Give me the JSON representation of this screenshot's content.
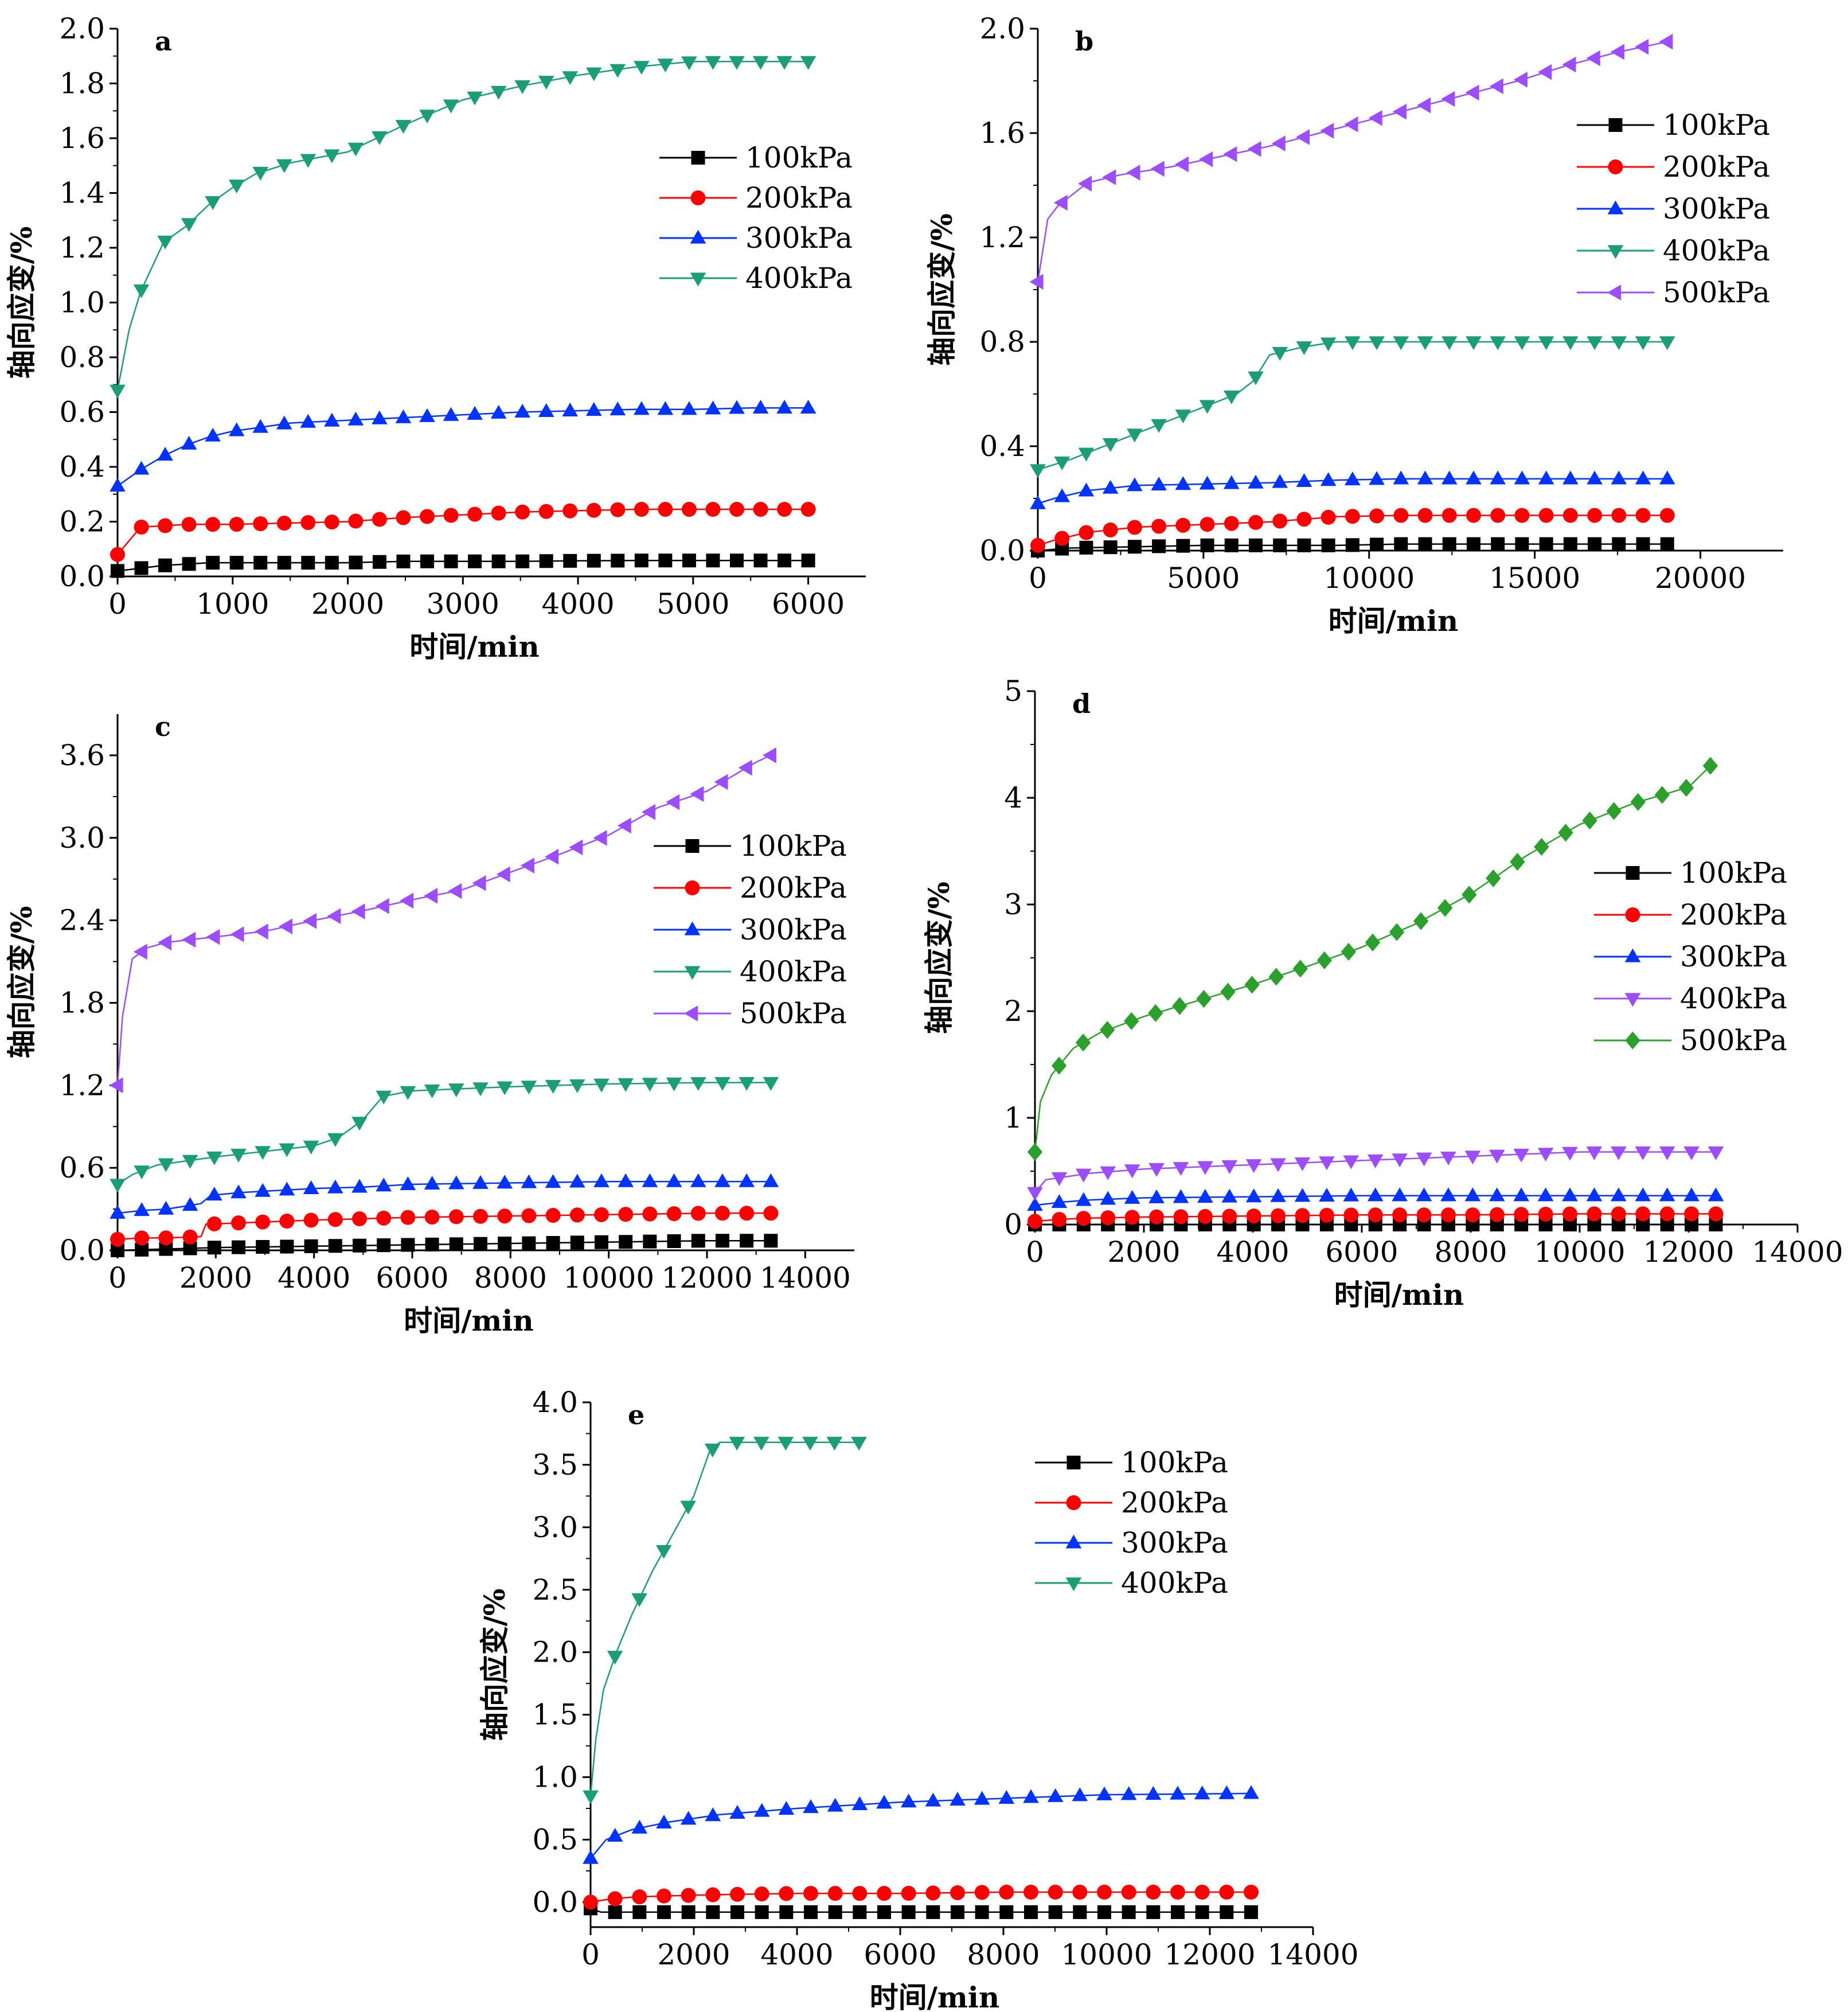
{
  "chart_data": [
    {
      "type": "line",
      "panel": "a",
      "xlabel": "时间/min",
      "ylabel": "轴向应变/%",
      "xlim": [
        0,
        6500
      ],
      "ylim": [
        0,
        2.0
      ],
      "xticks": [
        "0",
        "1000",
        "2000",
        "3000",
        "4000",
        "5000",
        "6000"
      ],
      "yticks": [
        "0.0",
        "0.2",
        "0.4",
        "0.6",
        "0.8",
        "1.0",
        "1.2",
        "1.4",
        "1.6",
        "1.8",
        "2.0"
      ],
      "legend_position": "right",
      "series": [
        {
          "name": "100kPa",
          "color": "#000000",
          "marker": "square",
          "x": [
            0,
            200,
            400,
            600,
            800,
            1000,
            1500,
            2000,
            2500,
            3000,
            3500,
            4000,
            4500,
            5000,
            5500,
            6000
          ],
          "y": [
            0.02,
            0.03,
            0.04,
            0.045,
            0.05,
            0.05,
            0.05,
            0.05,
            0.055,
            0.055,
            0.055,
            0.057,
            0.058,
            0.058,
            0.058,
            0.058
          ]
        },
        {
          "name": "200kPa",
          "color": "#ff0000",
          "marker": "circle",
          "x": [
            0,
            200,
            400,
            600,
            1000,
            1500,
            2000,
            2500,
            3000,
            3500,
            4000,
            4500,
            5000,
            5500,
            6000
          ],
          "y": [
            0.08,
            0.18,
            0.185,
            0.19,
            0.19,
            0.195,
            0.2,
            0.215,
            0.225,
            0.235,
            0.24,
            0.245,
            0.245,
            0.245,
            0.245
          ]
        },
        {
          "name": "300kPa",
          "color": "#0033ff",
          "marker": "triangle-up",
          "x": [
            0,
            200,
            400,
            600,
            800,
            1000,
            1500,
            2000,
            2500,
            3000,
            3500,
            4000,
            4500,
            5000,
            5500,
            6000
          ],
          "y": [
            0.33,
            0.39,
            0.44,
            0.48,
            0.51,
            0.53,
            0.56,
            0.57,
            0.58,
            0.59,
            0.6,
            0.605,
            0.61,
            0.61,
            0.615,
            0.615
          ]
        },
        {
          "name": "400kPa",
          "color": "#1b9e77",
          "marker": "triangle-down",
          "x": [
            0,
            100,
            200,
            400,
            600,
            800,
            1000,
            1200,
            1500,
            2000,
            2500,
            3000,
            3500,
            4000,
            4500,
            5000,
            5500,
            6000
          ],
          "y": [
            0.68,
            0.9,
            1.04,
            1.22,
            1.28,
            1.36,
            1.42,
            1.47,
            1.51,
            1.55,
            1.65,
            1.74,
            1.79,
            1.83,
            1.86,
            1.88,
            1.88,
            1.88
          ]
        }
      ]
    },
    {
      "type": "line",
      "panel": "b",
      "xlabel": "时间/min",
      "ylabel": "轴向应变/%",
      "xlim": [
        0,
        22500
      ],
      "ylim": [
        0,
        2.0
      ],
      "xticks": [
        "0",
        "5000",
        "10000",
        "15000",
        "20000"
      ],
      "yticks": [
        "0.0",
        "0.4",
        "0.8",
        "1.2",
        "1.6",
        "2.0"
      ],
      "legend_position": "top-right",
      "series": [
        {
          "name": "100kPa",
          "color": "#000000",
          "marker": "square",
          "x": [
            0,
            1000,
            3000,
            5000,
            7000,
            9000,
            11000,
            13000,
            15000,
            17000,
            19000
          ],
          "y": [
            0.0,
            0.01,
            0.015,
            0.02,
            0.02,
            0.02,
            0.025,
            0.025,
            0.025,
            0.025,
            0.025
          ]
        },
        {
          "name": "200kPa",
          "color": "#ff0000",
          "marker": "circle",
          "x": [
            0,
            500,
            1500,
            3000,
            5000,
            7000,
            9000,
            11000,
            13000,
            15000,
            17000,
            19000
          ],
          "y": [
            0.02,
            0.04,
            0.07,
            0.09,
            0.1,
            0.11,
            0.13,
            0.135,
            0.135,
            0.135,
            0.135,
            0.135
          ]
        },
        {
          "name": "300kPa",
          "color": "#0033ff",
          "marker": "triangle-up",
          "x": [
            0,
            500,
            1500,
            3000,
            5000,
            7000,
            9000,
            11000,
            13000,
            15000,
            17000,
            19000
          ],
          "y": [
            0.18,
            0.2,
            0.23,
            0.25,
            0.255,
            0.26,
            0.27,
            0.275,
            0.275,
            0.275,
            0.275,
            0.275
          ]
        },
        {
          "name": "400kPa",
          "color": "#1b9e77",
          "marker": "triangle-down",
          "x": [
            0,
            1000,
            2000,
            3000,
            4000,
            5000,
            6000,
            6500,
            7000,
            8000,
            9000,
            11000,
            13000,
            15000,
            17000,
            19000
          ],
          "y": [
            0.31,
            0.35,
            0.4,
            0.45,
            0.5,
            0.55,
            0.6,
            0.65,
            0.75,
            0.78,
            0.8,
            0.8,
            0.8,
            0.8,
            0.8,
            0.8
          ]
        },
        {
          "name": "500kPa",
          "color": "#9b4dff",
          "marker": "triangle-left",
          "x": [
            0,
            300,
            600,
            1000,
            1500,
            2500,
            4000,
            5500,
            7000,
            8500,
            10000,
            11500,
            13000,
            14500,
            16000,
            17500,
            19000
          ],
          "y": [
            1.03,
            1.27,
            1.32,
            1.36,
            1.41,
            1.44,
            1.47,
            1.51,
            1.55,
            1.6,
            1.65,
            1.7,
            1.75,
            1.8,
            1.86,
            1.91,
            1.95
          ]
        }
      ]
    },
    {
      "type": "line",
      "panel": "c",
      "xlabel": "时间/min",
      "ylabel": "轴向应变/%",
      "xlim": [
        0,
        15000
      ],
      "ylim": [
        0,
        3.9
      ],
      "xticks": [
        "0",
        "2000",
        "4000",
        "6000",
        "8000",
        "10000",
        "12000",
        "14000"
      ],
      "yticks": [
        "0.0",
        "0.6",
        "1.2",
        "1.8",
        "2.4",
        "3.0",
        "3.6"
      ],
      "legend_position": "right",
      "series": [
        {
          "name": "100kPa",
          "color": "#000000",
          "marker": "square",
          "x": [
            0,
            1000,
            2000,
            4000,
            6000,
            8000,
            10000,
            12000,
            13300
          ],
          "y": [
            0.0,
            0.01,
            0.02,
            0.03,
            0.04,
            0.05,
            0.06,
            0.07,
            0.07
          ]
        },
        {
          "name": "200kPa",
          "color": "#ff0000",
          "marker": "circle",
          "x": [
            0,
            500,
            1000,
            1700,
            1800,
            2500,
            4000,
            6000,
            8000,
            10000,
            12000,
            13300
          ],
          "y": [
            0.08,
            0.09,
            0.09,
            0.1,
            0.19,
            0.2,
            0.22,
            0.24,
            0.25,
            0.26,
            0.27,
            0.27
          ]
        },
        {
          "name": "300kPa",
          "color": "#0033ff",
          "marker": "triangle-up",
          "x": [
            0,
            500,
            1000,
            1700,
            1900,
            2500,
            4000,
            5000,
            6000,
            8000,
            10000,
            12000,
            13300
          ],
          "y": [
            0.27,
            0.29,
            0.3,
            0.34,
            0.4,
            0.42,
            0.45,
            0.46,
            0.48,
            0.49,
            0.5,
            0.5,
            0.5
          ]
        },
        {
          "name": "400kPa",
          "color": "#1b9e77",
          "marker": "triangle-down",
          "x": [
            0,
            300,
            800,
            2000,
            3000,
            4000,
            4500,
            5000,
            5400,
            6000,
            8000,
            10000,
            12000,
            13300
          ],
          "y": [
            0.48,
            0.55,
            0.62,
            0.68,
            0.72,
            0.76,
            0.82,
            0.95,
            1.12,
            1.16,
            1.19,
            1.21,
            1.22,
            1.22
          ]
        },
        {
          "name": "500kPa",
          "color": "#9b4dff",
          "marker": "triangle-left",
          "x": [
            0,
            100,
            300,
            600,
            1000,
            2000,
            3000,
            4000,
            5000,
            6000,
            7000,
            8000,
            9000,
            10000,
            11000,
            12000,
            13000,
            13300
          ],
          "y": [
            1.2,
            1.7,
            2.12,
            2.2,
            2.24,
            2.28,
            2.32,
            2.4,
            2.47,
            2.55,
            2.62,
            2.75,
            2.88,
            3.02,
            3.22,
            3.34,
            3.55,
            3.6
          ]
        }
      ]
    },
    {
      "type": "line",
      "panel": "d",
      "xlabel": "时间/min",
      "ylabel": "轴向应变/%",
      "xlim": [
        0,
        14000
      ],
      "ylim": [
        0,
        5
      ],
      "xticks": [
        "0",
        "2000",
        "4000",
        "6000",
        "8000",
        "10000",
        "12000",
        "14000"
      ],
      "yticks": [
        "0",
        "1",
        "2",
        "3",
        "4",
        "5"
      ],
      "legend_position": "right",
      "series": [
        {
          "name": "100kPa",
          "color": "#000000",
          "marker": "square",
          "x": [
            0,
            1000,
            2000,
            4000,
            6000,
            8000,
            10000,
            12500
          ],
          "y": [
            0.0,
            0.0,
            0.0,
            0.0,
            0.0,
            0.0,
            0.0,
            0.0
          ]
        },
        {
          "name": "200kPa",
          "color": "#ff0000",
          "marker": "circle",
          "x": [
            0,
            500,
            1000,
            2000,
            4000,
            6000,
            8000,
            10000,
            12500
          ],
          "y": [
            0.03,
            0.05,
            0.06,
            0.07,
            0.08,
            0.09,
            0.09,
            0.1,
            0.1
          ]
        },
        {
          "name": "300kPa",
          "color": "#0033ff",
          "marker": "triangle-up",
          "x": [
            0,
            500,
            1000,
            2000,
            4000,
            6000,
            8000,
            10000,
            12500
          ],
          "y": [
            0.18,
            0.21,
            0.23,
            0.25,
            0.26,
            0.27,
            0.27,
            0.27,
            0.27
          ]
        },
        {
          "name": "400kPa",
          "color": "#9b4dff",
          "marker": "triangle-down",
          "x": [
            0,
            200,
            1000,
            2000,
            4000,
            6000,
            8000,
            10000,
            12500
          ],
          "y": [
            0.3,
            0.42,
            0.48,
            0.52,
            0.56,
            0.6,
            0.64,
            0.68,
            0.68
          ]
        },
        {
          "name": "500kPa",
          "color": "#2ca02c",
          "marker": "diamond",
          "x": [
            0,
            100,
            300,
            700,
            1200,
            2000,
            3000,
            4000,
            5000,
            6000,
            7000,
            8000,
            9000,
            10000,
            11000,
            12000,
            12400
          ],
          "y": [
            0.68,
            1.15,
            1.4,
            1.65,
            1.8,
            1.95,
            2.1,
            2.25,
            2.42,
            2.6,
            2.82,
            3.1,
            3.45,
            3.75,
            3.95,
            4.1,
            4.3
          ]
        }
      ]
    },
    {
      "type": "line",
      "panel": "e",
      "xlabel": "时间/min",
      "ylabel": "轴向应变/%",
      "xlim": [
        0,
        14000
      ],
      "ylim": [
        -0.2,
        4.0
      ],
      "xticks": [
        "0",
        "2000",
        "4000",
        "6000",
        "8000",
        "10000",
        "12000",
        "14000"
      ],
      "yticks": [
        "0.0",
        "0.5",
        "1.0",
        "1.5",
        "2.0",
        "2.5",
        "3.0",
        "3.5",
        "4.0"
      ],
      "legend_position": "top-right",
      "series": [
        {
          "name": "100kPa",
          "color": "#000000",
          "marker": "square",
          "x": [
            0,
            200,
            1000,
            2000,
            4000,
            6000,
            8000,
            10000,
            12800
          ],
          "y": [
            -0.05,
            -0.08,
            -0.08,
            -0.08,
            -0.08,
            -0.08,
            -0.08,
            -0.08,
            -0.08
          ]
        },
        {
          "name": "200kPa",
          "color": "#ff0000",
          "marker": "circle",
          "x": [
            0,
            300,
            800,
            1500,
            2500,
            4000,
            6000,
            8000,
            10000,
            12800
          ],
          "y": [
            0.0,
            0.02,
            0.04,
            0.05,
            0.06,
            0.07,
            0.07,
            0.08,
            0.08,
            0.08
          ]
        },
        {
          "name": "300kPa",
          "color": "#0033ff",
          "marker": "triangle-up",
          "x": [
            0,
            300,
            800,
            1500,
            2500,
            4000,
            6000,
            8000,
            10000,
            12800
          ],
          "y": [
            0.35,
            0.5,
            0.58,
            0.64,
            0.7,
            0.75,
            0.8,
            0.83,
            0.86,
            0.87
          ]
        },
        {
          "name": "400kPa",
          "color": "#1b9e77",
          "marker": "triangle-down",
          "x": [
            0,
            100,
            250,
            500,
            800,
            1200,
            1600,
            2000,
            2300,
            2500,
            3000,
            4000,
            5200
          ],
          "y": [
            0.85,
            1.3,
            1.7,
            2.0,
            2.3,
            2.65,
            2.95,
            3.25,
            3.6,
            3.68,
            3.68,
            3.68,
            3.68
          ]
        }
      ]
    }
  ]
}
